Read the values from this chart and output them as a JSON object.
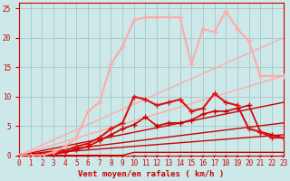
{
  "background_color": "#cce8e8",
  "grid_color": "#aacccc",
  "xlim": [
    0,
    23
  ],
  "ylim": [
    0,
    26
  ],
  "xlabel": "Vent moyen/en rafales ( km/h )",
  "xticks": [
    0,
    1,
    2,
    3,
    4,
    5,
    6,
    7,
    8,
    9,
    10,
    11,
    12,
    13,
    14,
    15,
    16,
    17,
    18,
    19,
    20,
    21,
    22,
    23
  ],
  "yticks": [
    0,
    5,
    10,
    15,
    20,
    25
  ],
  "lines": [
    {
      "x": [
        0,
        1,
        2,
        3,
        4,
        5,
        6,
        7,
        8,
        9,
        10,
        11,
        12,
        13,
        14,
        15,
        16,
        17,
        18,
        19,
        20,
        21,
        22,
        23
      ],
      "y": [
        0,
        0,
        0,
        0,
        0,
        0,
        0,
        0,
        0,
        0,
        0.5,
        0.5,
        0.5,
        0.5,
        0.5,
        0.5,
        0.5,
        0.5,
        0.5,
        0.5,
        0.5,
        0.5,
        0.5,
        0.5
      ],
      "color": "#cc0000",
      "lw": 1.0,
      "marker": null,
      "zorder": 2
    },
    {
      "x": [
        0,
        23
      ],
      "y": [
        0,
        3.5
      ],
      "color": "#cc0000",
      "lw": 1.0,
      "marker": null,
      "zorder": 2
    },
    {
      "x": [
        0,
        23
      ],
      "y": [
        0,
        5.5
      ],
      "color": "#cc0000",
      "lw": 1.0,
      "marker": null,
      "zorder": 2
    },
    {
      "x": [
        0,
        23
      ],
      "y": [
        0,
        9.0
      ],
      "color": "#cc0000",
      "lw": 1.0,
      "marker": null,
      "zorder": 2
    },
    {
      "x": [
        0,
        23
      ],
      "y": [
        0,
        13.5
      ],
      "color": "#ffaaaa",
      "lw": 1.0,
      "marker": null,
      "zorder": 2
    },
    {
      "x": [
        0,
        23
      ],
      "y": [
        0,
        20.0
      ],
      "color": "#ffaaaa",
      "lw": 1.0,
      "marker": null,
      "zorder": 2
    },
    {
      "x": [
        0,
        1,
        2,
        3,
        4,
        5,
        6,
        7,
        8,
        9,
        10,
        11,
        12,
        13,
        14,
        15,
        16,
        17,
        18,
        19,
        20,
        21,
        22,
        23
      ],
      "y": [
        0,
        0,
        0,
        0.2,
        0.5,
        1.0,
        1.5,
        2.5,
        3.5,
        4.5,
        5.2,
        6.5,
        5.0,
        5.5,
        5.5,
        6.0,
        7.0,
        7.5,
        7.5,
        8.0,
        8.5,
        4.0,
        3.5,
        3.0
      ],
      "color": "#cc0000",
      "lw": 1.2,
      "marker": "+",
      "ms": 4,
      "mew": 1.0,
      "zorder": 3
    },
    {
      "x": [
        0,
        1,
        2,
        3,
        4,
        5,
        6,
        7,
        8,
        9,
        10,
        11,
        12,
        13,
        14,
        15,
        16,
        17,
        18,
        19,
        20,
        21,
        22,
        23
      ],
      "y": [
        0,
        0,
        0,
        0.3,
        0.8,
        1.5,
        2.0,
        3.0,
        4.5,
        5.5,
        10.0,
        9.5,
        8.5,
        9.0,
        9.5,
        7.5,
        8.0,
        10.5,
        9.0,
        8.5,
        4.5,
        4.0,
        3.0,
        3.0
      ],
      "color": "#dd1111",
      "lw": 1.5,
      "marker": "+",
      "ms": 4,
      "mew": 1.0,
      "zorder": 3
    },
    {
      "x": [
        0,
        1,
        2,
        3,
        4,
        5,
        6,
        7,
        8,
        9,
        10,
        11,
        12,
        13,
        14,
        15,
        16,
        17,
        18,
        19,
        20,
        21,
        22,
        23
      ],
      "y": [
        0,
        0,
        0,
        0.5,
        1.5,
        3.0,
        7.5,
        9.0,
        15.5,
        18.5,
        23.0,
        23.5,
        23.5,
        23.5,
        23.5,
        15.5,
        21.5,
        21.0,
        24.5,
        21.5,
        19.5,
        13.5,
        13.5,
        13.5
      ],
      "color": "#ffaaaa",
      "lw": 1.5,
      "marker": "+",
      "ms": 4,
      "mew": 1.0,
      "zorder": 3
    }
  ],
  "tick_color": "#cc0000",
  "label_color": "#cc0000",
  "label_fontsize": 6.5,
  "tick_fontsize": 5.5
}
